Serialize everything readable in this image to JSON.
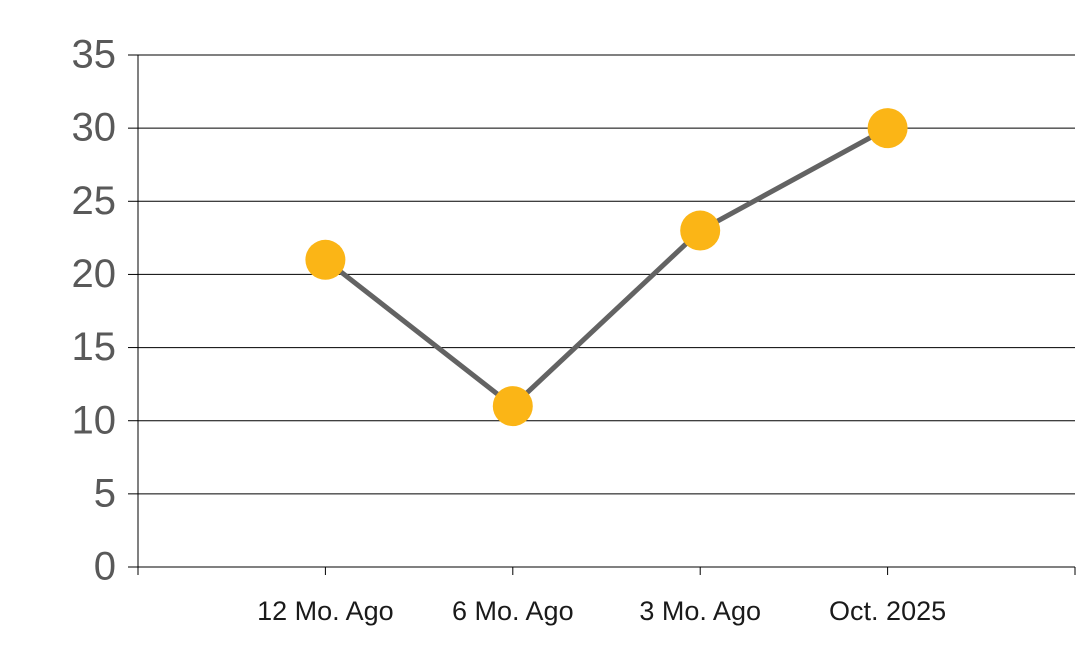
{
  "chart_data": {
    "type": "line",
    "categories": [
      "12 Mo. Ago",
      "6 Mo. Ago",
      "3 Mo. Ago",
      "Oct. 2025"
    ],
    "values": [
      21,
      11,
      23,
      30
    ],
    "color": "#fbb516",
    "line_color": "#636363",
    "ylim": [
      0,
      35
    ],
    "yticks": [
      0,
      5,
      10,
      15,
      20,
      25,
      30,
      35
    ],
    "grid": true
  }
}
